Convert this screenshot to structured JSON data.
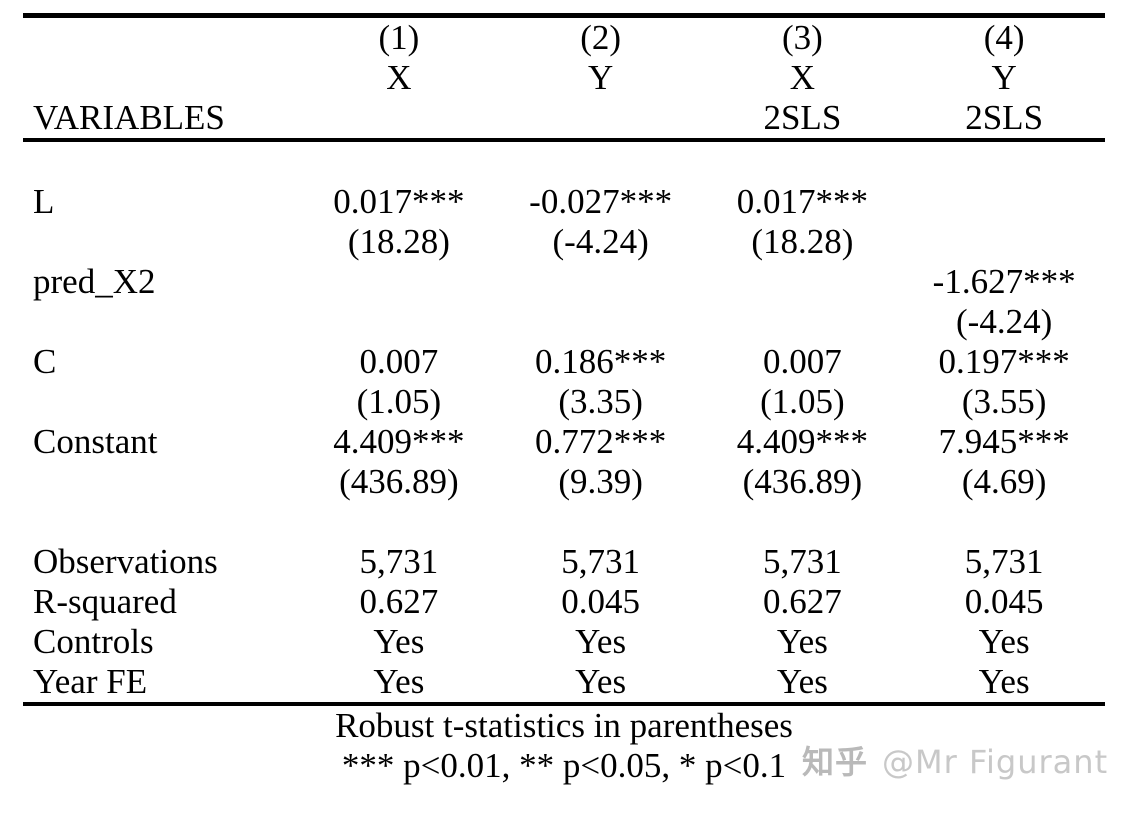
{
  "table": {
    "left_header": "VARIABLES",
    "header_rows": [
      [
        "",
        "(1)",
        "(2)",
        "(3)",
        "(4)"
      ],
      [
        "",
        "X",
        "Y",
        "X",
        "Y"
      ],
      [
        "VARIABLES",
        "",
        "",
        "2SLS",
        "2SLS"
      ]
    ],
    "rows": [
      [
        "",
        "",
        "",
        "",
        ""
      ],
      [
        "L",
        "0.017***",
        "-0.027***",
        "0.017***",
        ""
      ],
      [
        "",
        "(18.28)",
        "(-4.24)",
        "(18.28)",
        ""
      ],
      [
        "pred_X2",
        "",
        "",
        "",
        "-1.627***"
      ],
      [
        "",
        "",
        "",
        "",
        "(-4.24)"
      ],
      [
        "C",
        "0.007",
        "0.186***",
        "0.007",
        "0.197***"
      ],
      [
        "",
        "(1.05)",
        "(3.35)",
        "(1.05)",
        "(3.55)"
      ],
      [
        "Constant",
        "4.409***",
        "0.772***",
        "4.409***",
        "7.945***"
      ],
      [
        "",
        "(436.89)",
        "(9.39)",
        "(436.89)",
        "(4.69)"
      ],
      [
        "",
        "",
        "",
        "",
        ""
      ],
      [
        "Observations",
        "5,731",
        "5,731",
        "5,731",
        "5,731"
      ],
      [
        "R-squared",
        "0.627",
        "0.045",
        "0.627",
        "0.045"
      ],
      [
        "Controls",
        "Yes",
        "Yes",
        "Yes",
        "Yes"
      ],
      [
        "Year FE",
        "Yes",
        "Yes",
        "Yes",
        "Yes"
      ]
    ],
    "notes": [
      "Robust t-statistics in parentheses",
      "*** p<0.01, ** p<0.05, * p<0.1"
    ]
  },
  "watermark": {
    "logo": "知乎",
    "handle": "@Mr Figurant"
  },
  "colors": {
    "background": "#ffffff",
    "text": "#000000",
    "rule": "#000000",
    "watermark_logo": "#b9b9b9",
    "watermark_handle": "#c8c8c8"
  }
}
